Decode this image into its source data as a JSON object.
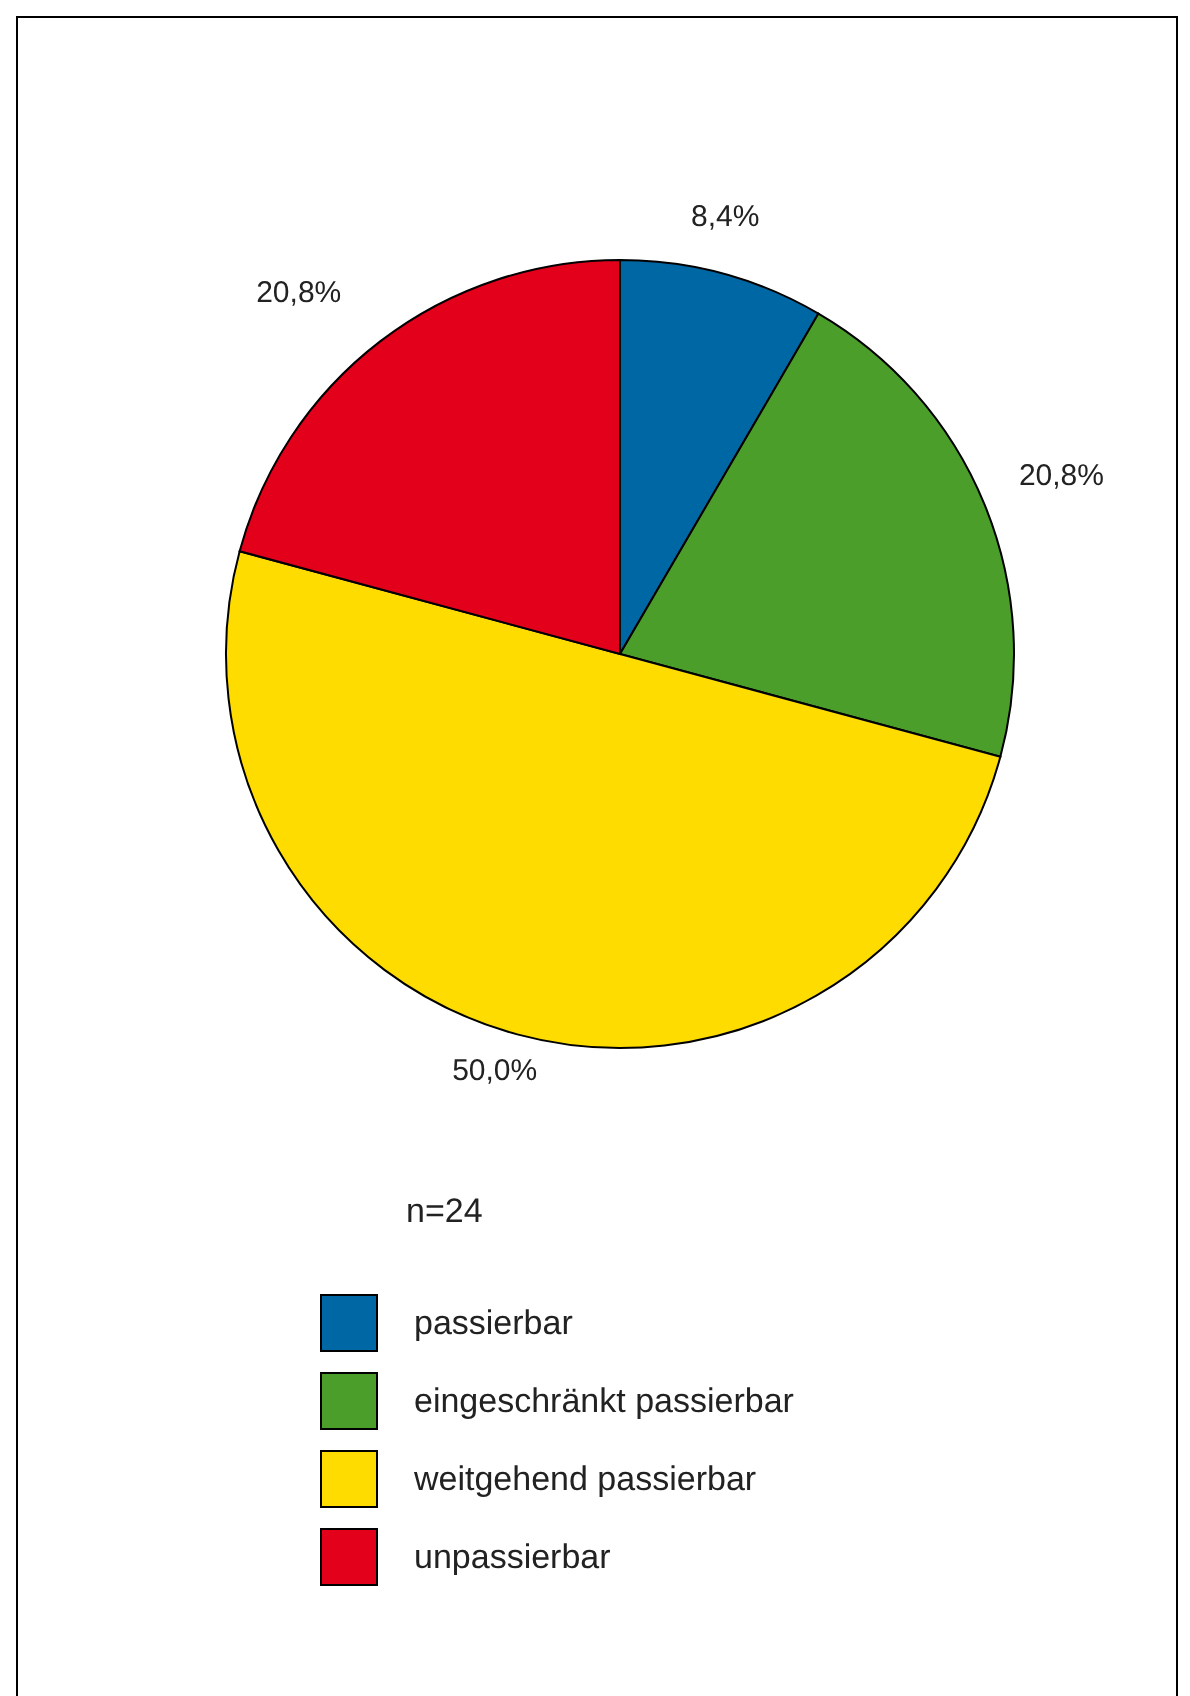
{
  "chart_data": {
    "type": "pie",
    "categories": [
      "passierbar",
      "eingeschränkt passierbar",
      "weitgehend passierbar",
      "unpassierbar"
    ],
    "values": [
      8.4,
      20.8,
      50.0,
      20.8
    ],
    "colors": [
      "#0067a5",
      "#4c9e2a",
      "#ffdc00",
      "#e2001a"
    ],
    "value_labels": [
      "8,4%",
      "20,8%",
      "50,0%",
      "20,8%"
    ],
    "annotations": [
      "n=24"
    ],
    "legend": "bottom"
  }
}
